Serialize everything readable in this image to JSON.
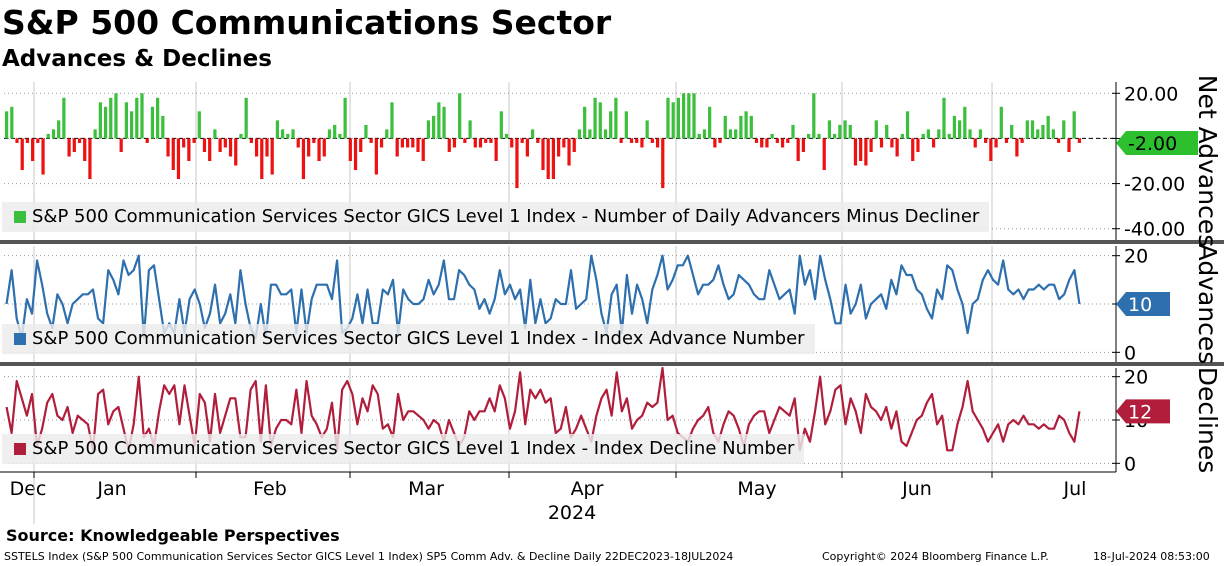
{
  "header": {
    "title": "S&P 500 Communications Sector",
    "subtitle": "Advances & Declines"
  },
  "source": "Source: Knowledgeable Perspectives",
  "footer": {
    "description": "SSTELS Index (S&P 500 Communication Services Sector GICS Level 1 Index) SP5 Comm Adv. & Decline  Daily 22DEC2023-18JUL2024",
    "copyright": "Copyright© 2024 Bloomberg Finance L.P.",
    "timestamp": "18-Jul-2024 08:53:00"
  },
  "colors": {
    "advance_up": "#3cbf3c",
    "advance_down": "#ee1111",
    "advance_number": "#2e6fae",
    "decline_number": "#b01e3c",
    "separator": "#555555",
    "last_value_net": "#2dbf2d"
  },
  "chart_data": [
    {
      "type": "bar",
      "panel": "net",
      "ylabel": "Net Advances",
      "ylim": [
        -45,
        25
      ],
      "ticks": [
        "20.00",
        "0.00",
        "-20.00",
        "-40.00"
      ],
      "tick_values": [
        20,
        0,
        -20,
        -40
      ],
      "last_value_label": "-2.00",
      "legend": "S&P 500 Communication Services Sector GICS Level 1 Index - Number of Daily Advancers Minus Decliner",
      "values": [
        12,
        14,
        -2,
        -14,
        -2,
        -10,
        -2,
        -16,
        2,
        4,
        8,
        18,
        -8,
        -6,
        -2,
        -10,
        -18,
        4,
        16,
        14,
        18,
        20,
        -6,
        16,
        12,
        18,
        20,
        -2,
        14,
        18,
        10,
        -8,
        -14,
        -18,
        -4,
        -10,
        -2,
        12,
        -6,
        -10,
        4,
        -6,
        -4,
        -8,
        -12,
        2,
        18,
        -2,
        -8,
        -18,
        -8,
        -16,
        8,
        4,
        2,
        4,
        -4,
        -18,
        -8,
        -2,
        -10,
        -8,
        4,
        6,
        2,
        18,
        -10,
        -14,
        -6,
        6,
        -2,
        -16,
        -4,
        4,
        16,
        -8,
        -4,
        -4,
        -4,
        -6,
        -10,
        8,
        10,
        16,
        14,
        -6,
        -4,
        20,
        -2,
        8,
        -4,
        -4,
        -2,
        -2,
        -10,
        12,
        2,
        -4,
        -22,
        -2,
        -8,
        4,
        -2,
        -14,
        -18,
        -18,
        -8,
        -4,
        -12,
        -6,
        4,
        14,
        4,
        18,
        16,
        4,
        12,
        18,
        -2,
        12,
        -2,
        -2,
        -4,
        8,
        -2,
        -4,
        -22,
        18,
        16,
        18,
        20,
        20,
        20,
        2,
        4,
        14,
        -4,
        -2,
        10,
        4,
        4,
        10,
        12,
        10,
        -2,
        -4,
        -4,
        2,
        -2,
        -4,
        -2,
        6,
        -10,
        -6,
        2,
        20,
        2,
        -14,
        8,
        2,
        6,
        8,
        6,
        -12,
        -10,
        -12,
        -6,
        8,
        -4,
        6,
        -4,
        -8,
        2,
        12,
        -10,
        -6,
        2,
        4,
        -4,
        4,
        18,
        2,
        10,
        8,
        14,
        4,
        -4,
        4,
        -2,
        -10,
        -4,
        14,
        -2,
        6,
        -8,
        -2,
        8,
        8,
        4,
        6,
        10,
        4,
        -2,
        8,
        -6,
        12,
        -2
      ]
    },
    {
      "type": "line",
      "panel": "advances",
      "ylabel": "Advances",
      "ylim": [
        -2,
        22
      ],
      "ticks": [
        "20",
        "10",
        "0"
      ],
      "tick_values": [
        20,
        10,
        0
      ],
      "last_value_label": "10",
      "legend": "S&P 500 Communication Services Sector GICS Level 1 Index - Index Advance Number",
      "values": [
        10,
        17,
        7,
        3,
        11,
        8,
        19,
        14,
        8,
        5,
        12,
        10,
        6,
        10,
        11,
        12,
        12,
        13,
        7,
        6,
        17,
        15,
        12,
        19,
        16,
        17,
        20,
        3,
        17,
        18,
        11,
        4,
        6,
        4,
        11,
        4,
        11,
        13,
        10,
        5,
        8,
        14,
        6,
        8,
        12,
        6,
        17,
        10,
        5,
        3,
        10,
        3,
        14,
        14,
        12,
        12,
        13,
        4,
        13,
        4,
        11,
        14,
        14,
        14,
        11,
        19,
        4,
        5,
        7,
        12,
        6,
        13,
        6,
        6,
        13,
        12,
        15,
        4,
        13,
        11,
        10,
        10,
        11,
        15,
        12,
        14,
        19,
        11,
        11,
        17,
        16,
        14,
        13,
        9,
        11,
        8,
        11,
        17,
        12,
        14,
        11,
        13,
        5,
        15,
        6,
        11,
        6,
        7,
        11,
        10,
        10,
        17,
        9,
        10,
        11,
        20,
        15,
        8,
        4,
        12,
        14,
        4,
        16,
        8,
        14,
        11,
        6,
        13,
        16,
        20,
        13,
        15,
        18,
        18,
        20,
        16,
        12,
        14,
        14,
        15,
        18,
        14,
        11,
        12,
        16,
        15,
        14,
        12,
        11,
        11,
        17,
        14,
        11,
        12,
        13,
        8,
        20,
        14,
        17,
        11,
        20,
        15,
        11,
        6,
        6,
        14,
        8,
        10,
        14,
        7,
        10,
        11,
        12,
        9,
        15,
        12,
        18,
        16,
        16,
        13,
        12,
        9,
        7,
        13,
        11,
        18,
        17,
        13,
        10,
        4,
        10,
        11,
        15,
        17,
        15,
        14,
        19,
        13,
        12,
        13,
        11,
        13,
        13,
        14,
        13,
        14,
        14,
        11,
        12,
        15,
        17,
        10
      ]
    },
    {
      "type": "line",
      "panel": "declines",
      "ylabel": "Declines",
      "ylim": [
        -2,
        22
      ],
      "ticks": [
        "20",
        "10",
        "0"
      ],
      "tick_values": [
        20,
        10,
        0
      ],
      "last_value_label": "12",
      "legend": "S&P 500 Communication Services Sector GICS Level 1 Index - Index Decline Number",
      "values": [
        13,
        7,
        19,
        15,
        11,
        16,
        4,
        8,
        14,
        16,
        11,
        10,
        13,
        7,
        11,
        10,
        9,
        3,
        16,
        17,
        9,
        12,
        13,
        8,
        3,
        9,
        20,
        6,
        8,
        4,
        12,
        18,
        16,
        18,
        9,
        18,
        11,
        4,
        16,
        14,
        5,
        16,
        7,
        11,
        15,
        15,
        6,
        6,
        17,
        19,
        5,
        18,
        4,
        8,
        10,
        10,
        9,
        17,
        7,
        19,
        11,
        9,
        6,
        8,
        14,
        3,
        17,
        19,
        16,
        9,
        15,
        12,
        18,
        16,
        8,
        9,
        6,
        16,
        10,
        12,
        12,
        11,
        10,
        8,
        10,
        9,
        5,
        10,
        7,
        4,
        6,
        12,
        10,
        12,
        12,
        15,
        12,
        18,
        15,
        8,
        12,
        21,
        9,
        17,
        15,
        17,
        14,
        15,
        7,
        8,
        13,
        6,
        8,
        11,
        8,
        5,
        11,
        15,
        17,
        11,
        21,
        12,
        15,
        8,
        10,
        11,
        14,
        13,
        14,
        22,
        10,
        11,
        7,
        6,
        5,
        8,
        10,
        11,
        13,
        7,
        5,
        9,
        12,
        11,
        8,
        4,
        9,
        11,
        12,
        12,
        7,
        10,
        13,
        12,
        11,
        15,
        3,
        8,
        5,
        12,
        20,
        9,
        12,
        17,
        18,
        9,
        15,
        12,
        7,
        16,
        13,
        12,
        10,
        13,
        8,
        12,
        5,
        4,
        7,
        10,
        11,
        14,
        16,
        9,
        11,
        3,
        3,
        9,
        13,
        19,
        12,
        10,
        8,
        5,
        7,
        9,
        5,
        9,
        10,
        9,
        11,
        9,
        9,
        8,
        9,
        8,
        8,
        11,
        10,
        7,
        5,
        12
      ]
    }
  ],
  "x_axis": {
    "months": [
      "Dec",
      "Jan",
      "Feb",
      "Mar",
      "Apr",
      "May",
      "Jun",
      "Jul"
    ],
    "year": "2024"
  }
}
